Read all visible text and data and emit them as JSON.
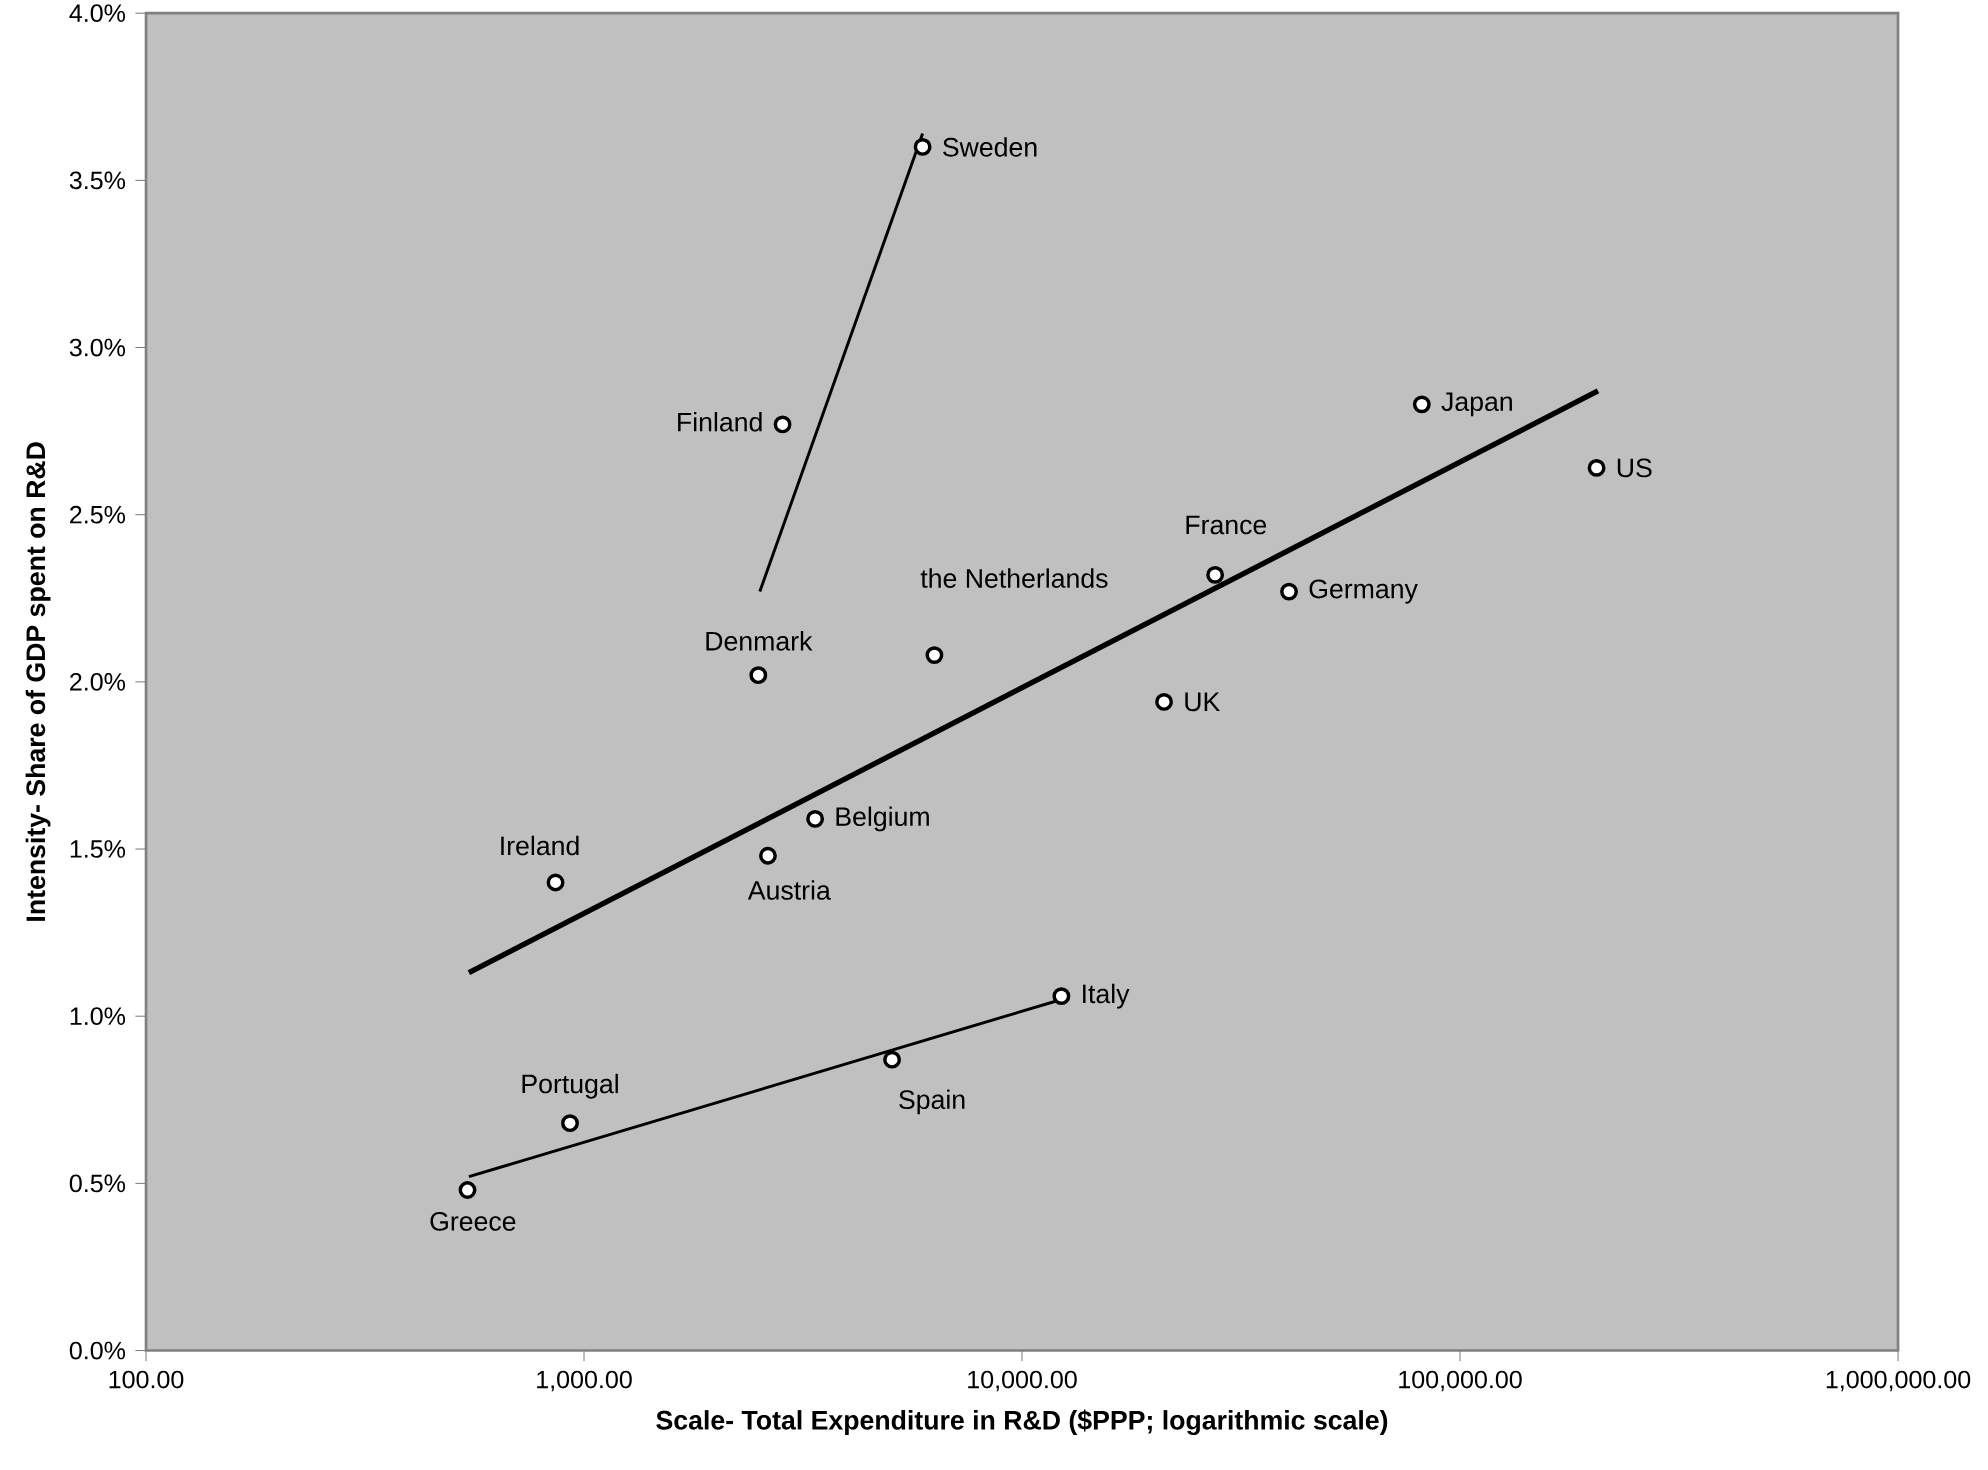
{
  "chart_data": {
    "type": "scatter",
    "xlabel": "Scale- Total Expenditure in R&D ($PPP; logarithmic scale)",
    "ylabel": "Intensity- Share of GDP spent on R&D",
    "log": "x",
    "legend": false,
    "xlim": [
      100,
      1000000
    ],
    "xticks": [
      {
        "value": 100,
        "label": "100.00"
      },
      {
        "value": 1000,
        "label": "1,000.00"
      },
      {
        "value": 10000,
        "label": "10,000.00"
      },
      {
        "value": 100000,
        "label": "100,000.00"
      },
      {
        "value": 1000000,
        "label": "1,000,000.00"
      }
    ],
    "ylim": [
      0,
      4
    ],
    "yticks": [
      {
        "value": 0,
        "label": "0.0%"
      },
      {
        "value": 0.5,
        "label": "0.5%"
      },
      {
        "value": 1,
        "label": "1.0%"
      },
      {
        "value": 1.5,
        "label": "1.5%"
      },
      {
        "value": 2,
        "label": "2.0%"
      },
      {
        "value": 2.5,
        "label": "2.5%"
      },
      {
        "value": 3,
        "label": "3.0%"
      },
      {
        "value": 3.5,
        "label": "3.5%"
      },
      {
        "value": 4,
        "label": "4.0%"
      }
    ],
    "series": [
      {
        "marker": "circle",
        "color": "#ffffff",
        "x": [
          5930,
          2840,
          2500,
          6310,
          27600,
          40700,
          81800,
          205000,
          21100,
          861,
          2630,
          3370,
          929,
          542,
          5050,
          12300
        ],
        "values": [
          3.6,
          2.77,
          2.02,
          2.08,
          2.32,
          2.27,
          2.83,
          2.64,
          1.94,
          1.4,
          1.48,
          1.59,
          0.68,
          0.48,
          0.87,
          1.06
        ]
      },
      {
        "type": "line",
        "color": "#000000",
        "line_style": "solid",
        "marker": "none",
        "x": [
          2520,
          5930
        ],
        "values": [
          2.27,
          3.64
        ]
      },
      {
        "type": "line",
        "color": "#000000",
        "line_style": "solid",
        "marker": "none",
        "x": [
          546,
          206500
        ],
        "values": [
          1.13,
          2.87
        ]
      },
      {
        "type": "line",
        "color": "#000000",
        "line_style": "solid",
        "marker": "none",
        "x": [
          546,
          12300
        ],
        "values": [
          0.52,
          1.05
        ]
      }
    ],
    "annotations": [
      {
        "text": "Sweden",
        "x": 5930,
        "y": 3.6
      },
      {
        "text": "Finland",
        "x": 2840,
        "y": 2.77
      },
      {
        "text": "Denmark",
        "x": 2500,
        "y": 2.02
      },
      {
        "text": "the Netherlands",
        "x": 6310,
        "y": 2.08
      },
      {
        "text": "France",
        "x": 27600,
        "y": 2.32
      },
      {
        "text": "Germany",
        "x": 40700,
        "y": 2.27
      },
      {
        "text": "Japan",
        "x": 81800,
        "y": 2.83
      },
      {
        "text": "US",
        "x": 205000,
        "y": 2.64
      },
      {
        "text": "UK",
        "x": 21100,
        "y": 1.94
      },
      {
        "text": "Ireland",
        "x": 861,
        "y": 1.4
      },
      {
        "text": "Austria",
        "x": 2630,
        "y": 1.48
      },
      {
        "text": "Belgium",
        "x": 3370,
        "y": 1.59
      },
      {
        "text": "Portugal",
        "x": 929,
        "y": 0.68
      },
      {
        "text": "Greece",
        "x": 542,
        "y": 0.48
      },
      {
        "text": "Spain",
        "x": 5050,
        "y": 0.87
      },
      {
        "text": "Italy",
        "x": 12300,
        "y": 1.06
      }
    ]
  }
}
